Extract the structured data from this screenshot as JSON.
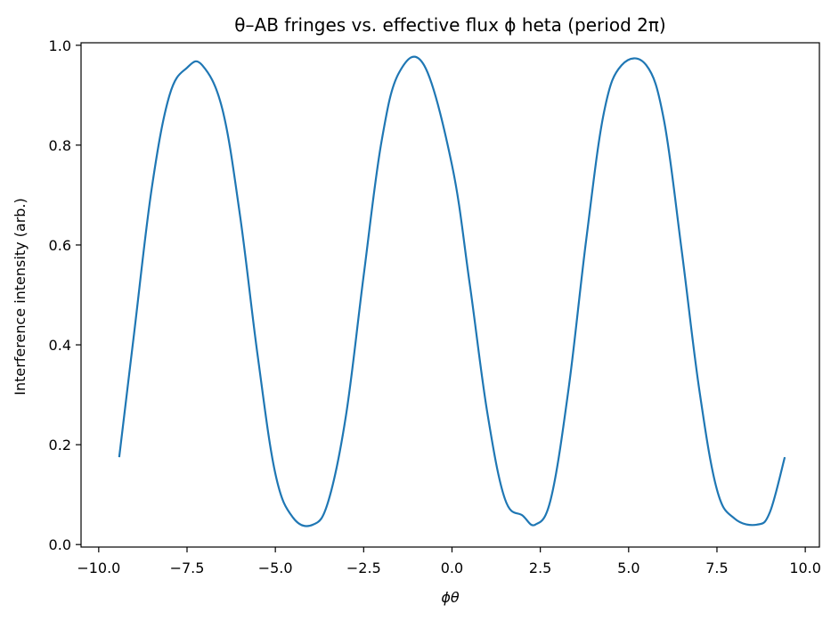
{
  "chart_data": {
    "type": "line",
    "title": "θ–AB fringes vs. effective flux ϕ heta (period 2π)",
    "xlabel": "ϕθ",
    "ylabel": "Interference intensity (arb.)",
    "xlim": [
      -10.5,
      10.4
    ],
    "ylim": [
      -0.005,
      1.005
    ],
    "xticks": [
      -10.0,
      -7.5,
      -5.0,
      -2.5,
      0.0,
      2.5,
      5.0,
      7.5,
      10.0
    ],
    "xtick_labels": [
      "−10.0",
      "−7.5",
      "−5.0",
      "−2.5",
      "0.0",
      "2.5",
      "5.0",
      "7.5",
      "10.0"
    ],
    "yticks": [
      0.0,
      0.2,
      0.4,
      0.6,
      0.8,
      1.0
    ],
    "ytick_labels": [
      "0.0",
      "0.2",
      "0.4",
      "0.6",
      "0.8",
      "1.0"
    ],
    "grid": false,
    "series": [
      {
        "color": "#1f77b4",
        "x": [
          -9.42,
          -9.0,
          -8.5,
          -8.0,
          -7.5,
          -7.07,
          -6.5,
          -6.0,
          -5.5,
          -5.0,
          -4.5,
          -3.93,
          -3.5,
          -3.0,
          -2.5,
          -2.0,
          -1.5,
          -0.79,
          0.0,
          0.5,
          1.0,
          1.5,
          2.0,
          2.36,
          2.8,
          3.3,
          3.8,
          4.3,
          4.8,
          5.5,
          6.0,
          6.5,
          7.0,
          7.5,
          8.0,
          8.64,
          9.0,
          9.42
        ],
        "y": [
          0.175,
          0.422,
          0.713,
          0.899,
          0.955,
          0.96,
          0.872,
          0.659,
          0.378,
          0.142,
          0.054,
          0.04,
          0.087,
          0.259,
          0.539,
          0.805,
          0.945,
          0.96,
          0.76,
          0.523,
          0.264,
          0.091,
          0.058,
          0.04,
          0.092,
          0.312,
          0.611,
          0.865,
          0.96,
          0.96,
          0.85,
          0.59,
          0.31,
          0.11,
          0.052,
          0.04,
          0.065,
          0.175
        ]
      }
    ]
  }
}
